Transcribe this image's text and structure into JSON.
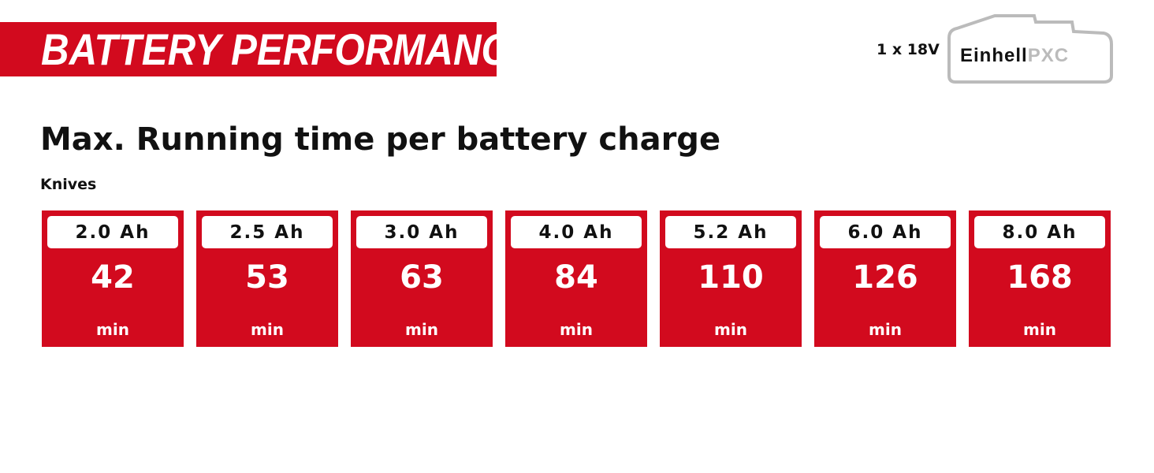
{
  "banner": {
    "title": "BATTERY PERFORMANCE"
  },
  "battery": {
    "voltage": "1 x 18V",
    "brand": "Einhell",
    "system": "PXC"
  },
  "heading": "Max. Running time per battery charge",
  "subheading": "Knives",
  "colors": {
    "accent": "#d20a1e"
  },
  "cards": [
    {
      "capacity": "2.0 Ah",
      "value": "42",
      "unit": "min"
    },
    {
      "capacity": "2.5 Ah",
      "value": "53",
      "unit": "min"
    },
    {
      "capacity": "3.0 Ah",
      "value": "63",
      "unit": "min"
    },
    {
      "capacity": "4.0 Ah",
      "value": "84",
      "unit": "min"
    },
    {
      "capacity": "5.2 Ah",
      "value": "110",
      "unit": "min"
    },
    {
      "capacity": "6.0 Ah",
      "value": "126",
      "unit": "min"
    },
    {
      "capacity": "8.0 Ah",
      "value": "168",
      "unit": "min"
    }
  ]
}
